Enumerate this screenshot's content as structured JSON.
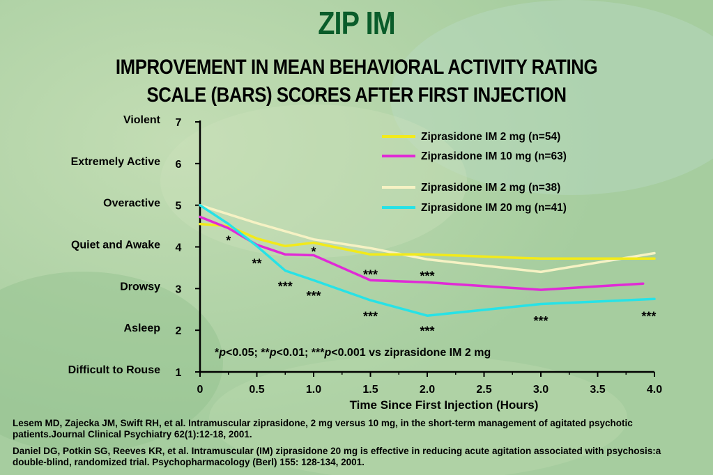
{
  "title": "ZIP IM",
  "subtitle_line1": "IMPROVEMENT IN MEAN BEHAVIORAL ACTIVITY RATING",
  "subtitle_line2": "SCALE (BARS) SCORES AFTER FIRST INJECTION",
  "significance_note": {
    "parts": [
      "*",
      "p",
      "<0.05; **",
      "p",
      "<0.01; ***",
      "p",
      "<0.001 vs ziprasidone IM 2 mg"
    ]
  },
  "references": [
    "Lesem MD, Zajecka JM, Swift RH, et al. Intramuscular ziprasidone, 2 mg versus 10 mg, in the short-term management of agitated psychotic patients.Journal Clinical Psychiatry 62(1):12-18, 2001.",
    "Daniel DG, Potkin SG, Reeves KR, et al. Intramuscular (IM) ziprasidone 20 mg is effective in reducing acute agitation associated with psychosis:a double-blind, randomized trial. Psychopharmacology (Berl) 155: 128-134, 2001."
  ],
  "chart_data": {
    "type": "line",
    "title": "IMPROVEMENT IN MEAN BEHAVIORAL ACTIVITY RATING SCALE (BARS) SCORES AFTER FIRST INJECTION",
    "xlabel": "Time Since First Injection (Hours)",
    "ylabel": "",
    "xlim": [
      0,
      4.0
    ],
    "ylim": [
      1,
      7
    ],
    "xticks": [
      {
        "value": 0,
        "label": "0"
      },
      {
        "value": 0.5,
        "label": "0.5"
      },
      {
        "value": 1.0,
        "label": "1.0"
      },
      {
        "value": 1.5,
        "label": "1.5"
      },
      {
        "value": 2.0,
        "label": "2.0"
      },
      {
        "value": 2.5,
        "label": "2.5"
      },
      {
        "value": 3.0,
        "label": "3.0"
      },
      {
        "value": 3.5,
        "label": "3.5"
      },
      {
        "value": 4.0,
        "label": "4.0"
      }
    ],
    "yticks": [
      {
        "value": 1,
        "label": "1",
        "category": "Difficult to Rouse"
      },
      {
        "value": 2,
        "label": "2",
        "category": "Asleep"
      },
      {
        "value": 3,
        "label": "3",
        "category": "Drowsy"
      },
      {
        "value": 4,
        "label": "4",
        "category": "Quiet and Awake"
      },
      {
        "value": 5,
        "label": "5",
        "category": "Overactive"
      },
      {
        "value": 6,
        "label": "6",
        "category": "Extremely Active"
      },
      {
        "value": 7,
        "label": "7",
        "category": "Violent"
      }
    ],
    "grid": false,
    "legend_position": "top-right",
    "series": [
      {
        "name": "Ziprasidone IM 2 mg (n=54)",
        "color": "#f2ea1a",
        "x": [
          0,
          0.25,
          0.5,
          0.75,
          1.0,
          1.5,
          2.0,
          3.0,
          4.0
        ],
        "y": [
          4.55,
          4.5,
          4.2,
          4.02,
          4.1,
          3.82,
          3.82,
          3.72,
          3.72
        ]
      },
      {
        "name": "Ziprasidone IM 10 mg (n=63)",
        "color": "#e02ad6",
        "x": [
          0,
          0.25,
          0.5,
          0.75,
          1.0,
          1.5,
          2.0,
          3.0,
          3.9
        ],
        "y": [
          4.72,
          4.45,
          4.05,
          3.82,
          3.8,
          3.2,
          3.15,
          2.97,
          3.12
        ]
      },
      {
        "name": "Ziprasidone IM 2 mg (n=38)",
        "color": "#f6f2c4",
        "x": [
          0,
          0.5,
          1.0,
          1.5,
          2.0,
          3.0,
          4.0
        ],
        "y": [
          5.0,
          4.57,
          4.18,
          3.97,
          3.7,
          3.4,
          3.85
        ]
      },
      {
        "name": "Ziprasidone IM 20 mg (n=41)",
        "color": "#27e2e6",
        "x": [
          0,
          0.25,
          0.5,
          0.75,
          1.0,
          1.5,
          2.0,
          3.0,
          4.0
        ],
        "y": [
          5.0,
          4.55,
          4.02,
          3.43,
          3.2,
          2.72,
          2.35,
          2.63,
          2.75
        ]
      }
    ],
    "annotations": [
      {
        "text": "*",
        "x": 0.25,
        "y": 4.15
      },
      {
        "text": "*",
        "x": 1.0,
        "y": 3.88
      },
      {
        "text": "**",
        "x": 0.5,
        "y": 3.6
      },
      {
        "text": "***",
        "x": 0.75,
        "y": 3.05
      },
      {
        "text": "***",
        "x": 1.0,
        "y": 2.82
      },
      {
        "text": "***",
        "x": 1.5,
        "y": 3.33
      },
      {
        "text": "***",
        "x": 2.0,
        "y": 3.3
      },
      {
        "text": "***",
        "x": 1.5,
        "y": 2.33
      },
      {
        "text": "***",
        "x": 2.0,
        "y": 1.98
      },
      {
        "text": "***",
        "x": 3.0,
        "y": 2.22
      },
      {
        "text": "***",
        "x": 3.95,
        "y": 2.33
      }
    ]
  }
}
